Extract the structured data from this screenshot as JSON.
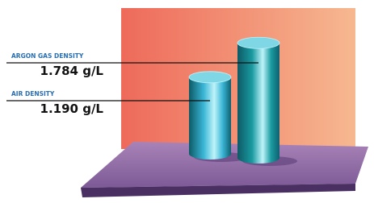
{
  "chart_data": {
    "type": "bar",
    "categories": [
      "ARGON GAS DENSITY",
      "AIR DENSITY"
    ],
    "values": [
      1.784,
      1.19
    ],
    "value_labels": [
      "1.784 g/L",
      "1.190 g/L"
    ],
    "colors": [
      "#1a9aa0",
      "#3ab6d6"
    ]
  }
}
